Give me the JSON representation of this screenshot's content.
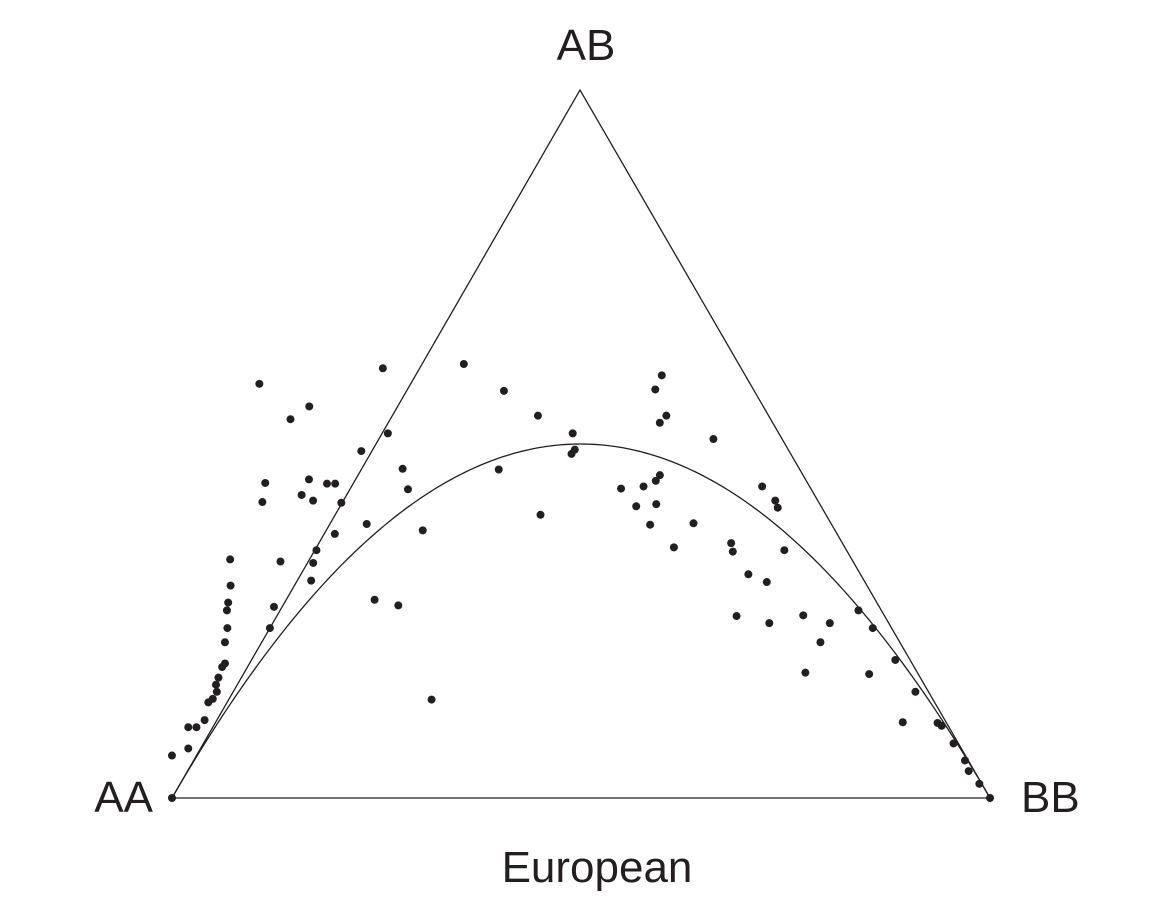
{
  "chart_data": {
    "type": "scatter",
    "subtype": "de Finetti ternary diagram (genotype frequencies)",
    "title": "European",
    "vertices": {
      "top": "AB",
      "left": "AA",
      "right": "BB"
    },
    "curve": "Hardy-Weinberg equilibrium parabola",
    "point_color": "#231f20",
    "line_color": "#231f20",
    "points_note": "each point = [freq AA, freq AB, freq BB]",
    "points": [
      [
        0.0,
        0.0,
        1.0
      ],
      [
        1.0,
        0.0,
        0.0
      ],
      [
        0.97,
        0.06,
        -0.03
      ],
      [
        0.945,
        0.07,
        -0.015
      ],
      [
        0.93,
        0.1,
        -0.03
      ],
      [
        0.92,
        0.1,
        -0.02
      ],
      [
        0.905,
        0.11,
        -0.015
      ],
      [
        0.888,
        0.135,
        -0.023
      ],
      [
        0.88,
        0.14,
        -0.02
      ],
      [
        0.87,
        0.15,
        -0.02
      ],
      [
        0.866,
        0.16,
        -0.026
      ],
      [
        0.858,
        0.17,
        -0.028
      ],
      [
        0.846,
        0.185,
        -0.031
      ],
      [
        0.84,
        0.19,
        -0.03
      ],
      [
        0.825,
        0.22,
        -0.045
      ],
      [
        0.812,
        0.24,
        -0.052
      ],
      [
        0.8,
        0.265,
        -0.065
      ],
      [
        0.793,
        0.276,
        -0.069
      ],
      [
        0.778,
        0.3,
        -0.078
      ],
      [
        0.76,
        0.337,
        -0.097
      ],
      [
        0.74,
        0.27,
        -0.01
      ],
      [
        0.68,
        0.418,
        -0.098
      ],
      [
        0.555,
        0.553,
        -0.108
      ],
      [
        0.76,
        0.24,
        0.0
      ],
      [
        0.7,
        0.334,
        -0.034
      ],
      [
        0.676,
        0.307,
        0.017
      ],
      [
        0.661,
        0.332,
        0.007
      ],
      [
        0.648,
        0.35,
        0.002
      ],
      [
        0.663,
        0.445,
        -0.108
      ],
      [
        0.617,
        0.42,
        -0.037
      ],
      [
        0.627,
        0.428,
        -0.055
      ],
      [
        0.607,
        0.45,
        -0.057
      ],
      [
        0.614,
        0.373,
        0.013
      ],
      [
        0.584,
        0.417,
        -0.001
      ],
      [
        0.588,
        0.444,
        -0.032
      ],
      [
        0.578,
        0.444,
        -0.022
      ],
      [
        0.568,
        0.387,
        0.045
      ],
      [
        0.523,
        0.49,
        -0.013
      ],
      [
        0.478,
        0.515,
        0.007
      ],
      [
        0.613,
        0.139,
        0.248
      ],
      [
        0.612,
        0.28,
        0.108
      ],
      [
        0.587,
        0.272,
        0.141
      ],
      [
        0.6,
        0.585,
        -0.185
      ],
      [
        0.587,
        0.535,
        -0.122
      ],
      [
        0.504,
        0.378,
        0.118
      ],
      [
        0.493,
        0.436,
        0.071
      ],
      [
        0.485,
        0.465,
        0.05
      ],
      [
        0.438,
        0.607,
        -0.045
      ],
      [
        0.368,
        0.464,
        0.168
      ],
      [
        0.349,
        0.4,
        0.251
      ],
      [
        0.336,
        0.613,
        0.051
      ],
      [
        0.306,
        0.575,
        0.119
      ],
      [
        0.282,
        0.54,
        0.178
      ],
      [
        0.252,
        0.515,
        0.233
      ],
      [
        0.268,
        0.486,
        0.246
      ],
      [
        0.261,
        0.492,
        0.247
      ],
      [
        0.232,
        0.437,
        0.331
      ],
      [
        0.226,
        0.412,
        0.362
      ],
      [
        0.222,
        0.386,
        0.392
      ],
      [
        0.209,
        0.354,
        0.437
      ],
      [
        0.203,
        0.44,
        0.357
      ],
      [
        0.2,
        0.415,
        0.385
      ],
      [
        0.184,
        0.448,
        0.368
      ],
      [
        0.175,
        0.456,
        0.369
      ],
      [
        0.168,
        0.388,
        0.444
      ],
      [
        0.14,
        0.348,
        0.512
      ],
      [
        0.136,
        0.36,
        0.504
      ],
      [
        0.12,
        0.305,
        0.575
      ],
      [
        0.097,
        0.22,
        0.683
      ],
      [
        0.137,
        0.177,
        0.686
      ],
      [
        0.181,
        0.257,
        0.562
      ],
      [
        0.099,
        0.258,
        0.643
      ],
      [
        0.072,
        0.247,
        0.681
      ],
      [
        0.06,
        0.175,
        0.765
      ],
      [
        0.146,
        0.247,
        0.607
      ],
      [
        0.137,
        0.316,
        0.547
      ],
      [
        0.058,
        0.44,
        0.502
      ],
      [
        0.052,
        0.42,
        0.528
      ],
      [
        0.028,
        0.265,
        0.707
      ],
      [
        0.023,
        0.24,
        0.737
      ],
      [
        0.018,
        0.195,
        0.787
      ],
      [
        0.016,
        0.15,
        0.834
      ],
      [
        0.011,
        0.106,
        0.883
      ],
      [
        0.008,
        0.102,
        0.89
      ],
      [
        0.006,
        0.077,
        0.917
      ],
      [
        0.004,
        0.053,
        0.943
      ],
      [
        0.007,
        0.038,
        0.955
      ],
      [
        0.003,
        0.02,
        0.977
      ],
      [
        0.053,
        0.107,
        0.84
      ],
      [
        0.076,
        0.35,
        0.574
      ],
      [
        0.138,
        0.53,
        0.332
      ],
      [
        0.125,
        0.54,
        0.335
      ],
      [
        0.084,
        0.507,
        0.409
      ],
      [
        0.12,
        0.577,
        0.303
      ],
      [
        0.102,
        0.597,
        0.301
      ],
      [
        0.054,
        0.41,
        0.536
      ]
    ]
  }
}
